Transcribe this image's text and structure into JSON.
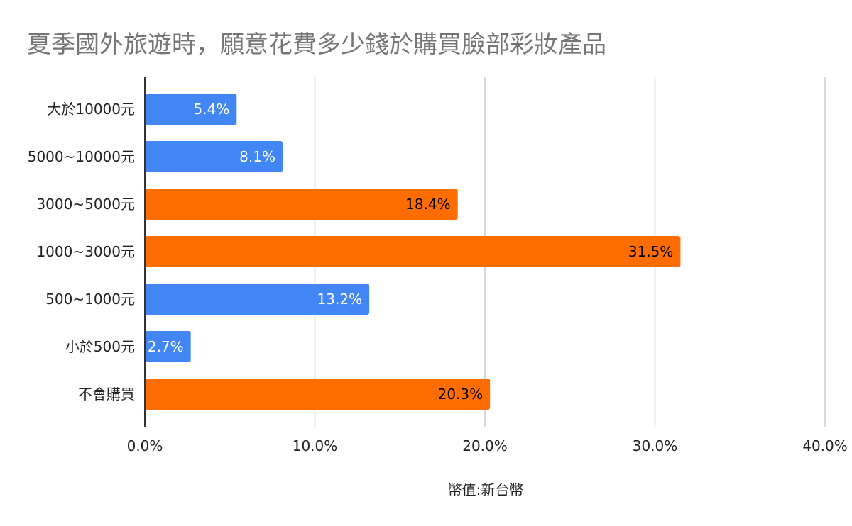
{
  "chart_data": {
    "type": "bar",
    "orientation": "horizontal",
    "title": "夏季國外旅遊時，願意花費多少錢於購買臉部彩妝產品",
    "xlabel": "幣值:新台幣",
    "ylabel": "",
    "categories": [
      "大於10000元",
      "5000~10000元",
      "3000~5000元",
      "1000~3000元",
      "500~1000元",
      "小於500元",
      "不會購買"
    ],
    "values": [
      5.4,
      8.1,
      18.4,
      31.5,
      13.2,
      2.7,
      20.3
    ],
    "data_labels": [
      "5.4%",
      "8.1%",
      "18.4%",
      "31.5%",
      "13.2%",
      "2.7%",
      "20.3%"
    ],
    "bar_colors": [
      "#4285F4",
      "#4285F4",
      "#FF6D01",
      "#FF6D01",
      "#4285F4",
      "#4285F4",
      "#FF6D01"
    ],
    "label_colors": [
      "#FFFFFF",
      "#FFFFFF",
      "#000000",
      "#000000",
      "#FFFFFF",
      "#FFFFFF",
      "#000000"
    ],
    "xlim": [
      0,
      40
    ],
    "xticks": [
      0,
      10,
      20,
      30,
      40
    ],
    "xtick_labels": [
      "0.0%",
      "10.0%",
      "20.0%",
      "30.0%",
      "40.0%"
    ],
    "grid": true,
    "legend": "none",
    "colors": {
      "blue": "#4285F4",
      "orange": "#FF6D01",
      "grid": "#CCCCCC",
      "axis": "#333333",
      "title": "#757575"
    }
  }
}
